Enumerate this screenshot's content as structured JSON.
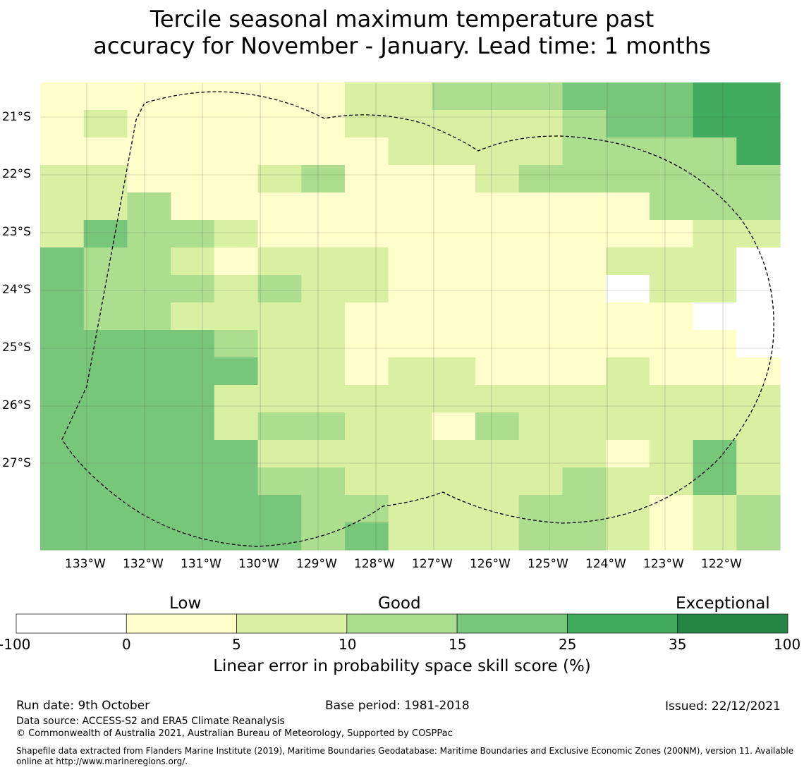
{
  "title": {
    "line1": "Tercile seasonal maximum temperature past",
    "line2": "accuracy for November - January. Lead time: 1 months"
  },
  "map": {
    "lat_labels": [
      "21°S",
      "22°S",
      "23°S",
      "24°S",
      "25°S",
      "26°S",
      "27°S"
    ],
    "lon_labels": [
      "133°W",
      "132°W",
      "131°W",
      "130°W",
      "129°W",
      "128°W",
      "127°W",
      "126°W",
      "125°W",
      "124°W",
      "123°W",
      "122°W"
    ],
    "grid_rows": [
      "11111112233344455",
      "12111112222234455",
      "11111111222233335",
      "22111231112333333",
      "22311111111111333",
      "24332111111111122",
      "43321222111112220",
      "43332322111110220",
      "43322221111111100",
      "44443221111111110",
      "44444221221112111",
      "44442222222222222",
      "44442332213222222",
      "44444222222221242",
      "44444332222232242",
      "44444433222332123",
      "44444434222332123"
    ],
    "color_levels": [
      "#ffffff",
      "#ffffcc",
      "#d9f0a3",
      "#addd8e",
      "#78c679",
      "#41ab5d",
      "#238443"
    ],
    "eez_line_color": "#000000"
  },
  "colorbar": {
    "category_labels": [
      "Low",
      "Good",
      "Exceptional"
    ],
    "ticks": [
      "-100",
      "0",
      "5",
      "10",
      "15",
      "25",
      "35",
      "100"
    ],
    "colors": [
      "#ffffff",
      "#ffffcc",
      "#d9f0a3",
      "#addd8e",
      "#78c679",
      "#41ab5d",
      "#238443"
    ],
    "label": "Linear error in probability space skill score (%)"
  },
  "footer": {
    "run_date": "Run date: 9th October",
    "base_period": "Base period: 1981-2018",
    "issued": "Issued: 22/12/2021",
    "data_source": "Data source: ACCESS-S2 and ERA5 Climate Reanalysis",
    "copyright": "© Commonwealth of Australia 2021, Australian Bureau of Meteorology, Supported by COSPPac",
    "shapefile_line1": "Shapefile data extracted from Flanders Marine Institute (2019), Maritime Boundaries Geodatabase: Maritime Boundaries and Exclusive Economic Zones (200NM), version 11. Available",
    "shapefile_line2": "online at http://www.marineregions.org/."
  }
}
